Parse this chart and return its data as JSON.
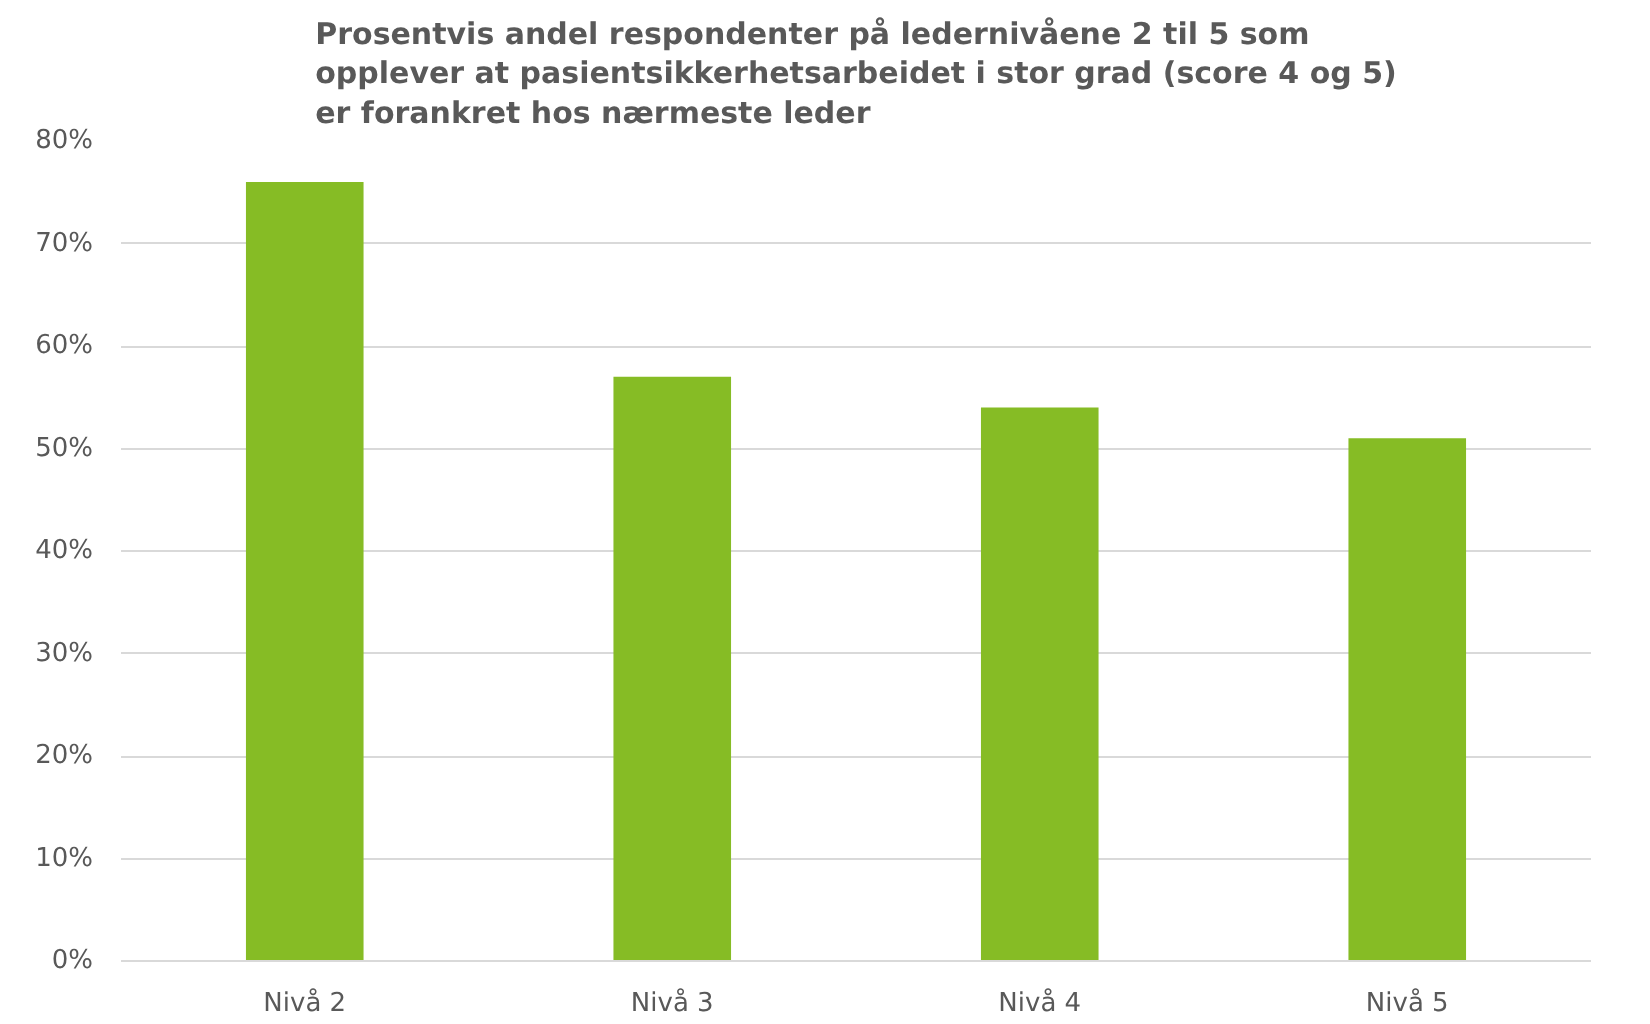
{
  "chart_data": {
    "type": "bar",
    "title": "Prosentvis andel respondenter på ledernivåene 2 til 5 som\nopplever at pasientsikkerhetsarbeidet i stor grad (score 4 og 5)\ner forankret hos nærmeste leder",
    "categories": [
      "Nivå 2",
      "Nivå 3",
      "Nivå 4",
      "Nivå 5"
    ],
    "values": [
      76,
      57,
      54,
      51
    ],
    "color": "#86bc25",
    "ylim": [
      0,
      80
    ],
    "yticks": [
      {
        "value": 0,
        "label": "0%"
      },
      {
        "value": 10,
        "label": "10%"
      },
      {
        "value": 20,
        "label": "20%"
      },
      {
        "value": 30,
        "label": "30%"
      },
      {
        "value": 40,
        "label": "40%"
      },
      {
        "value": 50,
        "label": "50%"
      },
      {
        "value": 60,
        "label": "60%"
      },
      {
        "value": 70,
        "label": "70%"
      },
      {
        "value": 80,
        "label": "80%"
      }
    ],
    "grid": "y"
  }
}
